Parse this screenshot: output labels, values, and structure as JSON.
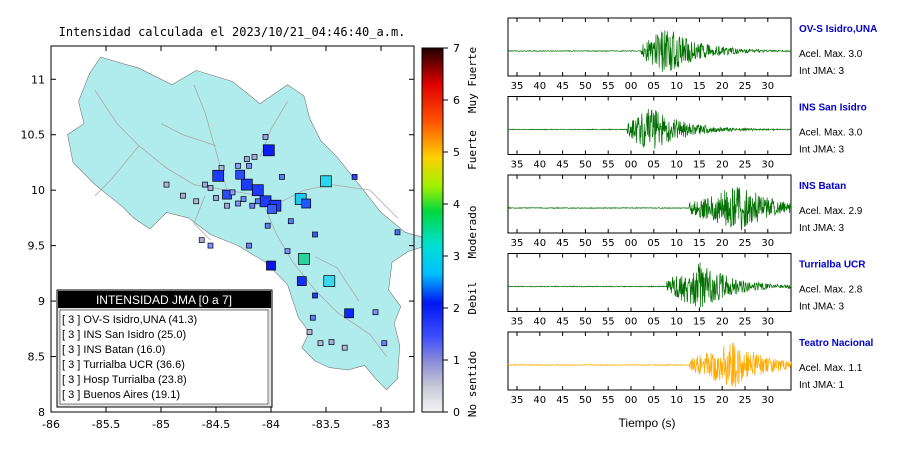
{
  "map": {
    "title": "Intensidad calculada el 2023/10/21_04:46:40_a.m.",
    "lon_ticks": [
      "-86",
      "-85.5",
      "-85",
      "-84.5",
      "-84",
      "-83.5",
      "-83"
    ],
    "lat_ticks": [
      "11",
      "10.5",
      "10",
      "9.5",
      "9",
      "8.5",
      "8"
    ],
    "lon_range": [
      -86,
      -82.7
    ],
    "lat_range": [
      8,
      11.3
    ],
    "land_color": "#b0ecec",
    "stations": [
      {
        "lon": -84.48,
        "lat": 10.13,
        "size": "big",
        "color": "#1e3cff"
      },
      {
        "lon": -84.22,
        "lat": 10.05,
        "size": "big",
        "color": "#1e3cff"
      },
      {
        "lon": -84.12,
        "lat": 10.0,
        "size": "big",
        "color": "#1e3cff"
      },
      {
        "lon": -84.05,
        "lat": 9.9,
        "size": "big",
        "color": "#1e3cff"
      },
      {
        "lon": -83.96,
        "lat": 9.86,
        "size": "big",
        "color": "#1e3cff"
      },
      {
        "lon": -83.99,
        "lat": 9.83,
        "size": "mid",
        "color": "#3a5cff"
      },
      {
        "lon": -84.28,
        "lat": 10.14,
        "size": "mid",
        "color": "#2a4cff"
      },
      {
        "lon": -84.4,
        "lat": 9.96,
        "size": "mid",
        "color": "#2a4cff"
      },
      {
        "lon": -84.02,
        "lat": 10.36,
        "size": "big",
        "color": "#0a1eff"
      },
      {
        "lon": -83.73,
        "lat": 9.92,
        "size": "big",
        "color": "#1ec8f0"
      },
      {
        "lon": -83.68,
        "lat": 9.88,
        "size": "mid",
        "color": "#1e5aff"
      },
      {
        "lon": -83.5,
        "lat": 10.08,
        "size": "big",
        "color": "#28d6ee"
      },
      {
        "lon": -84.0,
        "lat": 9.32,
        "size": "mid",
        "color": "#0a14e6"
      },
      {
        "lon": -83.7,
        "lat": 9.38,
        "size": "big",
        "color": "#2ad2a0"
      },
      {
        "lon": -83.72,
        "lat": 9.18,
        "size": "mid",
        "color": "#1432ff"
      },
      {
        "lon": -83.47,
        "lat": 9.18,
        "size": "big",
        "color": "#3ad8ee"
      },
      {
        "lon": -83.29,
        "lat": 8.89,
        "size": "mid",
        "color": "#0a28ff"
      },
      {
        "lon": -83.24,
        "lat": 10.12,
        "size": "sm",
        "color": "#2a46ff"
      },
      {
        "lon": -83.9,
        "lat": 10.12,
        "size": "sm",
        "color": "#5a7cff"
      },
      {
        "lon": -84.3,
        "lat": 10.22,
        "size": "sm",
        "color": "#8e9cff"
      },
      {
        "lon": -84.2,
        "lat": 10.22,
        "size": "sm",
        "color": "#7e8eff"
      },
      {
        "lon": -84.55,
        "lat": 10.02,
        "size": "sm",
        "color": "#a8aedc"
      },
      {
        "lon": -84.6,
        "lat": 10.05,
        "size": "sm",
        "color": "#a0a8d8"
      },
      {
        "lon": -84.35,
        "lat": 9.98,
        "size": "sm",
        "color": "#8e9cff"
      },
      {
        "lon": -84.25,
        "lat": 9.92,
        "size": "sm",
        "color": "#6e88ff"
      },
      {
        "lon": -84.12,
        "lat": 9.9,
        "size": "sm",
        "color": "#5a7cff"
      },
      {
        "lon": -84.17,
        "lat": 9.86,
        "size": "sm",
        "color": "#6a80ff"
      },
      {
        "lon": -84.3,
        "lat": 9.88,
        "size": "sm",
        "color": "#8090ff"
      },
      {
        "lon": -84.4,
        "lat": 9.86,
        "size": "sm",
        "color": "#9aa2e0"
      },
      {
        "lon": -84.05,
        "lat": 10.48,
        "size": "sm",
        "color": "#9aa2e0"
      },
      {
        "lon": -84.15,
        "lat": 10.3,
        "size": "sm",
        "color": "#a8aedc"
      },
      {
        "lon": -84.22,
        "lat": 10.28,
        "size": "sm",
        "color": "#a0a8d8"
      },
      {
        "lon": -84.45,
        "lat": 10.2,
        "size": "sm",
        "color": "#b4b8d4"
      },
      {
        "lon": -84.68,
        "lat": 9.9,
        "size": "sm",
        "color": "#b4b8d4"
      },
      {
        "lon": -84.63,
        "lat": 9.55,
        "size": "sm",
        "color": "#a8aedc"
      },
      {
        "lon": -84.55,
        "lat": 9.5,
        "size": "sm",
        "color": "#8090ff"
      },
      {
        "lon": -84.2,
        "lat": 9.5,
        "size": "sm",
        "color": "#6a80ff"
      },
      {
        "lon": -84.03,
        "lat": 9.68,
        "size": "sm",
        "color": "#5a7cff"
      },
      {
        "lon": -83.82,
        "lat": 9.72,
        "size": "sm",
        "color": "#5a7cff"
      },
      {
        "lon": -83.85,
        "lat": 9.45,
        "size": "sm",
        "color": "#7e8eff"
      },
      {
        "lon": -83.6,
        "lat": 9.6,
        "size": "sm",
        "color": "#3a5cff"
      },
      {
        "lon": -83.6,
        "lat": 9.05,
        "size": "sm",
        "color": "#1a3cff"
      },
      {
        "lon": -83.62,
        "lat": 8.85,
        "size": "sm",
        "color": "#5a7cff"
      },
      {
        "lon": -83.65,
        "lat": 8.72,
        "size": "sm",
        "color": "#b4b8d4"
      },
      {
        "lon": -83.55,
        "lat": 8.62,
        "size": "sm",
        "color": "#b4b8d4"
      },
      {
        "lon": -83.45,
        "lat": 8.63,
        "size": "sm",
        "color": "#a8aedc"
      },
      {
        "lon": -83.33,
        "lat": 8.58,
        "size": "sm",
        "color": "#b4b8d4"
      },
      {
        "lon": -82.97,
        "lat": 8.62,
        "size": "sm",
        "color": "#6a80ff"
      },
      {
        "lon": -83.05,
        "lat": 8.9,
        "size": "sm",
        "color": "#8090ff"
      },
      {
        "lon": -82.85,
        "lat": 9.62,
        "size": "sm",
        "color": "#4a6cff"
      },
      {
        "lon": -84.95,
        "lat": 10.05,
        "size": "sm",
        "color": "#b4b8d4"
      },
      {
        "lon": -84.8,
        "lat": 9.95,
        "size": "sm",
        "color": "#a8aedc"
      },
      {
        "lon": -84.5,
        "lat": 9.93,
        "size": "sm",
        "color": "#a0a8d8"
      }
    ]
  },
  "legend": {
    "title": "INTENSIDAD JMA [0 a 7]",
    "items": [
      "[ 3 ]  OV-S Isidro,UNA (41.3)",
      "[ 3 ]  INS San Isidro (25.0)",
      "[ 3 ]  INS Batan (16.0)",
      "[ 3 ]  Turrialba UCR (36.6)",
      "[ 3 ]  Hosp Turrialba (23.8)",
      "[ 3 ]  Buenos Aires (19.1)"
    ]
  },
  "colorbar": {
    "ticks": [
      "0",
      "1",
      "2",
      "3",
      "4",
      "5",
      "6",
      "7"
    ],
    "labels": [
      "No sentido",
      "Debil",
      "Moderado",
      "Fuerte",
      "Muy Fuerte"
    ],
    "range": [
      0,
      7
    ]
  },
  "traces": {
    "x_ticks": [
      "35",
      "40",
      "45",
      "50",
      "55",
      "00",
      "05",
      "10",
      "15",
      "20",
      "25",
      "30"
    ],
    "xlabel": "Tiempo (s)",
    "stations": [
      {
        "name": "OV-S Isidro,UNA",
        "accel": "Acel. Max. 3.0",
        "jma": "Int JMA: 3",
        "color": "#007000",
        "onset": 0.47,
        "peak": 0.56,
        "amp": 1.0
      },
      {
        "name": "INS San Isidro",
        "accel": "Acel. Max. 3.0",
        "jma": "Int JMA: 3",
        "color": "#007000",
        "onset": 0.42,
        "peak": 0.5,
        "amp": 0.95
      },
      {
        "name": "INS Batan",
        "accel": "Acel. Max. 2.9",
        "jma": "Int JMA: 3",
        "color": "#007000",
        "onset": 0.64,
        "peak": 0.83,
        "amp": 0.95
      },
      {
        "name": "Turrialba UCR",
        "accel": "Acel. Max. 2.8",
        "jma": "Int JMA: 3",
        "color": "#007000",
        "onset": 0.56,
        "peak": 0.68,
        "amp": 1.0
      },
      {
        "name": "Teatro Nacional",
        "accel": "Acel. Max. 1.1",
        "jma": "Int JMA: 1",
        "color": "#ffaa00",
        "onset": 0.64,
        "peak": 0.8,
        "amp": 0.95
      }
    ]
  }
}
